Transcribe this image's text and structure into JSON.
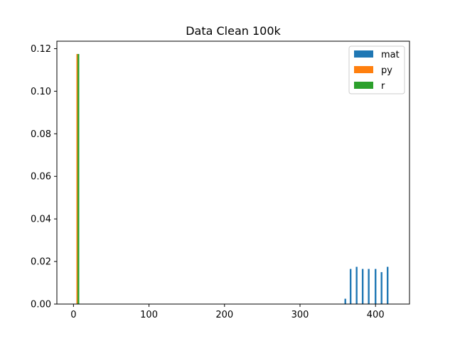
{
  "chart_data": {
    "type": "bar",
    "title": "Data Clean 100k",
    "xlabel": "",
    "ylabel": "",
    "xlim": [
      -22,
      445
    ],
    "ylim": [
      0,
      0.1235
    ],
    "xticks": [
      0,
      100,
      200,
      300,
      400
    ],
    "yticks": [
      0.0,
      0.02,
      0.04,
      0.06,
      0.08,
      0.1,
      0.12
    ],
    "xtick_labels": [
      "0",
      "100",
      "200",
      "300",
      "400"
    ],
    "ytick_labels": [
      "0.00",
      "0.02",
      "0.04",
      "0.06",
      "0.08",
      "0.10",
      "0.12"
    ],
    "grid": false,
    "legend_position": "top-right",
    "series": [
      {
        "name": "mat",
        "color": "#1f77b4",
        "bars": [
          {
            "x": 360,
            "value": 0.0025
          },
          {
            "x": 367,
            "value": 0.0165
          },
          {
            "x": 375,
            "value": 0.0175
          },
          {
            "x": 383,
            "value": 0.0165
          },
          {
            "x": 391,
            "value": 0.0165
          },
          {
            "x": 400,
            "value": 0.0165
          },
          {
            "x": 408,
            "value": 0.015
          },
          {
            "x": 416,
            "value": 0.0175
          }
        ]
      },
      {
        "name": "py",
        "color": "#ff7f0e",
        "bars": [
          {
            "x": 5,
            "value": 0.1175
          }
        ]
      },
      {
        "name": "r",
        "color": "#2ca02c",
        "bars": [
          {
            "x": 6.5,
            "value": 0.1175
          }
        ]
      }
    ]
  }
}
